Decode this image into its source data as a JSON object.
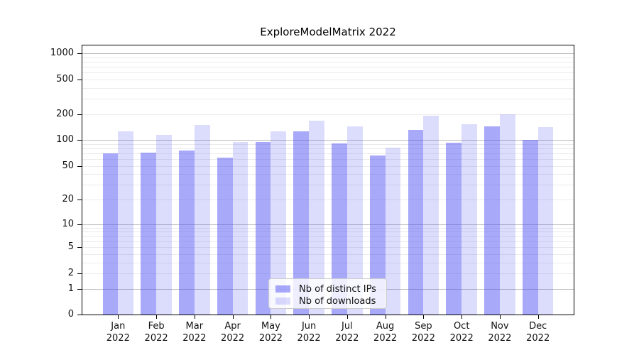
{
  "chart_data": {
    "type": "bar",
    "title": "ExploreModelMatrix 2022",
    "categories": [
      "Jan",
      "Feb",
      "Mar",
      "Apr",
      "May",
      "Jun",
      "Jul",
      "Aug",
      "Sep",
      "Oct",
      "Nov",
      "Dec"
    ],
    "x_tick_year": "2022",
    "series": [
      {
        "name": "Nb of distinct IPs",
        "color": "#a9a9f7",
        "fill_rgba": "rgba(80,80,245,0.49)",
        "values": [
          70,
          71,
          76,
          62,
          95,
          127,
          91,
          66,
          132,
          93,
          143,
          100
        ]
      },
      {
        "name": "Nb of downloads",
        "color": "#dcdcf8",
        "fill_rgba": "rgba(80,80,245,0.20)",
        "values": [
          127,
          115,
          150,
          95,
          126,
          169,
          143,
          82,
          192,
          153,
          197,
          142
        ]
      }
    ],
    "xlabel": "",
    "ylabel": "",
    "y_scale": "symlog",
    "ylim": [
      0,
      1250
    ],
    "y_ticks": [
      0,
      1,
      2,
      5,
      10,
      20,
      50,
      100,
      200,
      500,
      1000
    ],
    "y_major_gridlines": [
      1,
      10,
      100,
      1000
    ],
    "y_minor_multiples": [
      2,
      3,
      4,
      5,
      6,
      7,
      8,
      9
    ],
    "grid": "horizontal",
    "legend_position": "bottom-center-inside",
    "colors": {
      "background": "#ffffff",
      "spine": "#000000",
      "major_grid": "#bcbcbc",
      "minor_grid": "#ebebeb",
      "text": "#111111"
    }
  }
}
